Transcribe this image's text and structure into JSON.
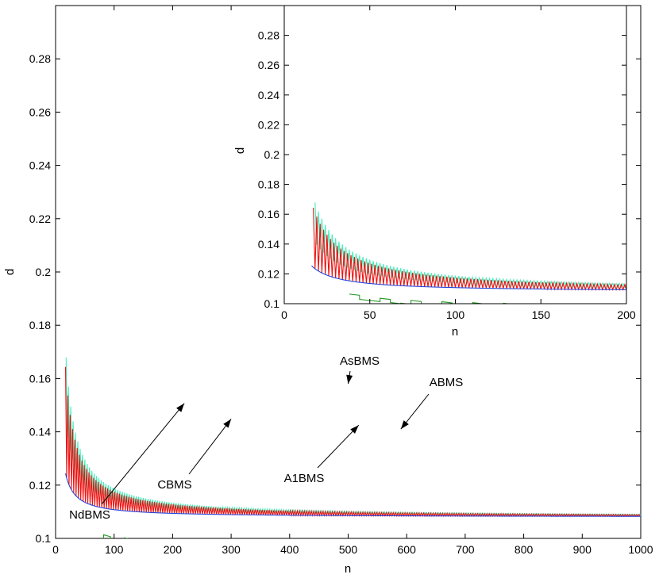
{
  "chart_data": [
    {
      "id": "main",
      "type": "line",
      "xlabel": "n",
      "ylabel": "d",
      "xlim": [
        0,
        1000
      ],
      "ylim": [
        0.1,
        0.3
      ],
      "xticks": [
        0,
        100,
        200,
        300,
        400,
        500,
        600,
        700,
        800,
        900,
        1000
      ],
      "yticks": [
        0.1,
        0.12,
        0.14,
        0.16,
        0.18,
        0.2,
        0.22,
        0.24,
        0.26,
        0.28
      ],
      "tick_labels_x": [
        "0",
        "100",
        "200",
        "300",
        "400",
        "500",
        "600",
        "700",
        "800",
        "900",
        "1000"
      ],
      "tick_labels_y": [
        "0.1",
        "0.12",
        "0.14",
        "0.16",
        "0.18",
        "0.2",
        "0.22",
        "0.24",
        "0.26",
        "0.28"
      ],
      "grid": false,
      "series": [
        {
          "name": "NdBMS",
          "color": "#2244dd",
          "style": "smooth",
          "k": 0.108,
          "p": 0.278,
          "x_range": [
            17,
            1000
          ]
        },
        {
          "name": "CBMS",
          "color": "#ee1111",
          "style": "zigzag",
          "k": 0.108,
          "p": 0.278,
          "amp0": 0.017,
          "x_range": [
            17,
            1000
          ]
        },
        {
          "name": "A1BMS",
          "color": "#44eebb",
          "style": "zigzag-offset",
          "k": 0.108,
          "p": 0.278,
          "off0": 0.008,
          "amp0": 0.012,
          "x_range": [
            18,
            1000
          ]
        },
        {
          "name": "ABMS",
          "color": "#229922",
          "style": "steps",
          "k": 0.0962,
          "p": 0.333,
          "x_range": [
            70,
            1000
          ]
        },
        {
          "name": "AsBMS",
          "color": "#66dd22",
          "style": "steps",
          "k": 0.0905,
          "p": 0.357,
          "x_range": [
            72,
            1000
          ]
        }
      ],
      "annotations": [
        {
          "text": "AsBMS",
          "target": [
            500,
            0.158
          ]
        },
        {
          "text": "ABMS",
          "target": [
            590,
            0.141
          ]
        },
        {
          "text": "A1BMS",
          "target": [
            518,
            0.1425
          ]
        },
        {
          "text": "CBMS",
          "target": [
            300,
            0.1448
          ]
        },
        {
          "text": "NdBMS",
          "target": [
            220,
            0.1507
          ]
        }
      ]
    },
    {
      "id": "inset",
      "type": "line",
      "xlabel": "n",
      "ylabel": "d",
      "xlim": [
        0,
        200
      ],
      "ylim": [
        0.1,
        0.3
      ],
      "xticks": [
        0,
        50,
        100,
        150,
        200
      ],
      "yticks": [
        0.1,
        0.12,
        0.14,
        0.16,
        0.18,
        0.2,
        0.22,
        0.24,
        0.26,
        0.28
      ],
      "tick_labels_x": [
        "0",
        "50",
        "100",
        "150",
        "200"
      ],
      "tick_labels_y": [
        "0.1",
        "0.12",
        "0.14",
        "0.16",
        "0.18",
        "0.2",
        "0.22",
        "0.24",
        "0.26",
        "0.28"
      ],
      "grid": false,
      "series": [
        {
          "name": "NdBMS",
          "color": "#2244dd",
          "style": "smooth",
          "k": 0.108,
          "p": 0.278,
          "x_range": [
            16,
            200
          ]
        },
        {
          "name": "CBMS",
          "color": "#ee1111",
          "style": "zigzag",
          "k": 0.108,
          "p": 0.278,
          "amp0": 0.017,
          "x_range": [
            17,
            200
          ]
        },
        {
          "name": "A1BMS",
          "color": "#44eebb",
          "style": "zigzag-offset",
          "k": 0.108,
          "p": 0.278,
          "off0": 0.008,
          "amp0": 0.012,
          "x_range": [
            18,
            200
          ]
        },
        {
          "name": "ABMS",
          "color": "#229922",
          "style": "steps",
          "k": 0.0962,
          "p": 0.333,
          "x_range": [
            38,
            200
          ]
        },
        {
          "name": "AsBMS",
          "color": "#66dd22",
          "style": "steps",
          "k": 0.0905,
          "p": 0.357,
          "x_range": [
            42,
            200
          ]
        }
      ]
    }
  ]
}
